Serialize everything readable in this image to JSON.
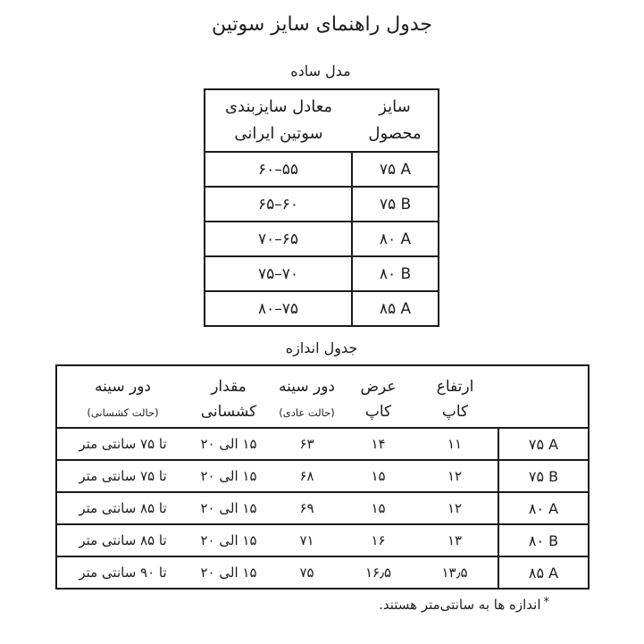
{
  "page": {
    "title": "جدول راهنمای سایز سوتین",
    "footnote_marker": "*",
    "footnote": "اندازه ها به سانتی‌متر هستند.",
    "text_color": "#1d1d1d",
    "border_color": "#1a1a1a",
    "background_color": "#ffffff"
  },
  "simple_table": {
    "caption": "مدل ساده",
    "headers": {
      "size_line1": "سایز",
      "size_line2": "محصول",
      "equiv_line1": "معادل سایزبندی",
      "equiv_line2": "سوتین ایرانی"
    },
    "rows": [
      {
        "size": "۷۵ A",
        "equiv": "۵۵–۶۰"
      },
      {
        "size": "۷۵ B",
        "equiv": "۶۰–۶۵"
      },
      {
        "size": "۸۰ A",
        "equiv": "۶۵–۷۰"
      },
      {
        "size": "۸۰ B",
        "equiv": "۷۰–۷۵"
      },
      {
        "size": "۸۵ A",
        "equiv": "۷۵–۸۰"
      }
    ]
  },
  "measure_table": {
    "caption": "جدول اندازه",
    "cols": {
      "size": {
        "l1": "",
        "l2": ""
      },
      "cup_height": {
        "l1": "ارتفاع",
        "l2": "کاپ"
      },
      "cup_width": {
        "l1": "عرض",
        "l2": "کاپ"
      },
      "chest_normal": {
        "l1": "دور سینه",
        "l2": "(حالت عادی)"
      },
      "stretch": {
        "l1": "مقدار",
        "l2": "کشسانی"
      },
      "chest_stretch": {
        "l1": "دور سینه",
        "l2": "(حالت کشسانی)"
      }
    },
    "rows": [
      {
        "size": "۷۵ A",
        "cup_height": "۱۱",
        "cup_width": "۱۴",
        "chest_normal": "۶۳",
        "stretch": "۱۵ الی ۲۰",
        "chest_stretch": "تا ۷۵ سانتی متر"
      },
      {
        "size": "۷۵ B",
        "cup_height": "۱۲",
        "cup_width": "۱۵",
        "chest_normal": "۶۸",
        "stretch": "۱۵ الی ۲۰",
        "chest_stretch": "تا ۷۵ سانتی متر"
      },
      {
        "size": "۸۰ A",
        "cup_height": "۱۲",
        "cup_width": "۱۵",
        "chest_normal": "۶۹",
        "stretch": "۱۵ الی ۲۰",
        "chest_stretch": "تا ۸۵ سانتی متر"
      },
      {
        "size": "۸۰ B",
        "cup_height": "۱۳",
        "cup_width": "۱۶",
        "chest_normal": "۷۱",
        "stretch": "۱۵ الی ۲۰",
        "chest_stretch": "تا ۸۵ سانتی متر"
      },
      {
        "size": "۸۵ A",
        "cup_height": "۱۳٫۵",
        "cup_width": "۱۶٫۵",
        "chest_normal": "۷۵",
        "stretch": "۱۵ الی ۲۰",
        "chest_stretch": "تا ۹۰ سانتی متر"
      }
    ]
  }
}
